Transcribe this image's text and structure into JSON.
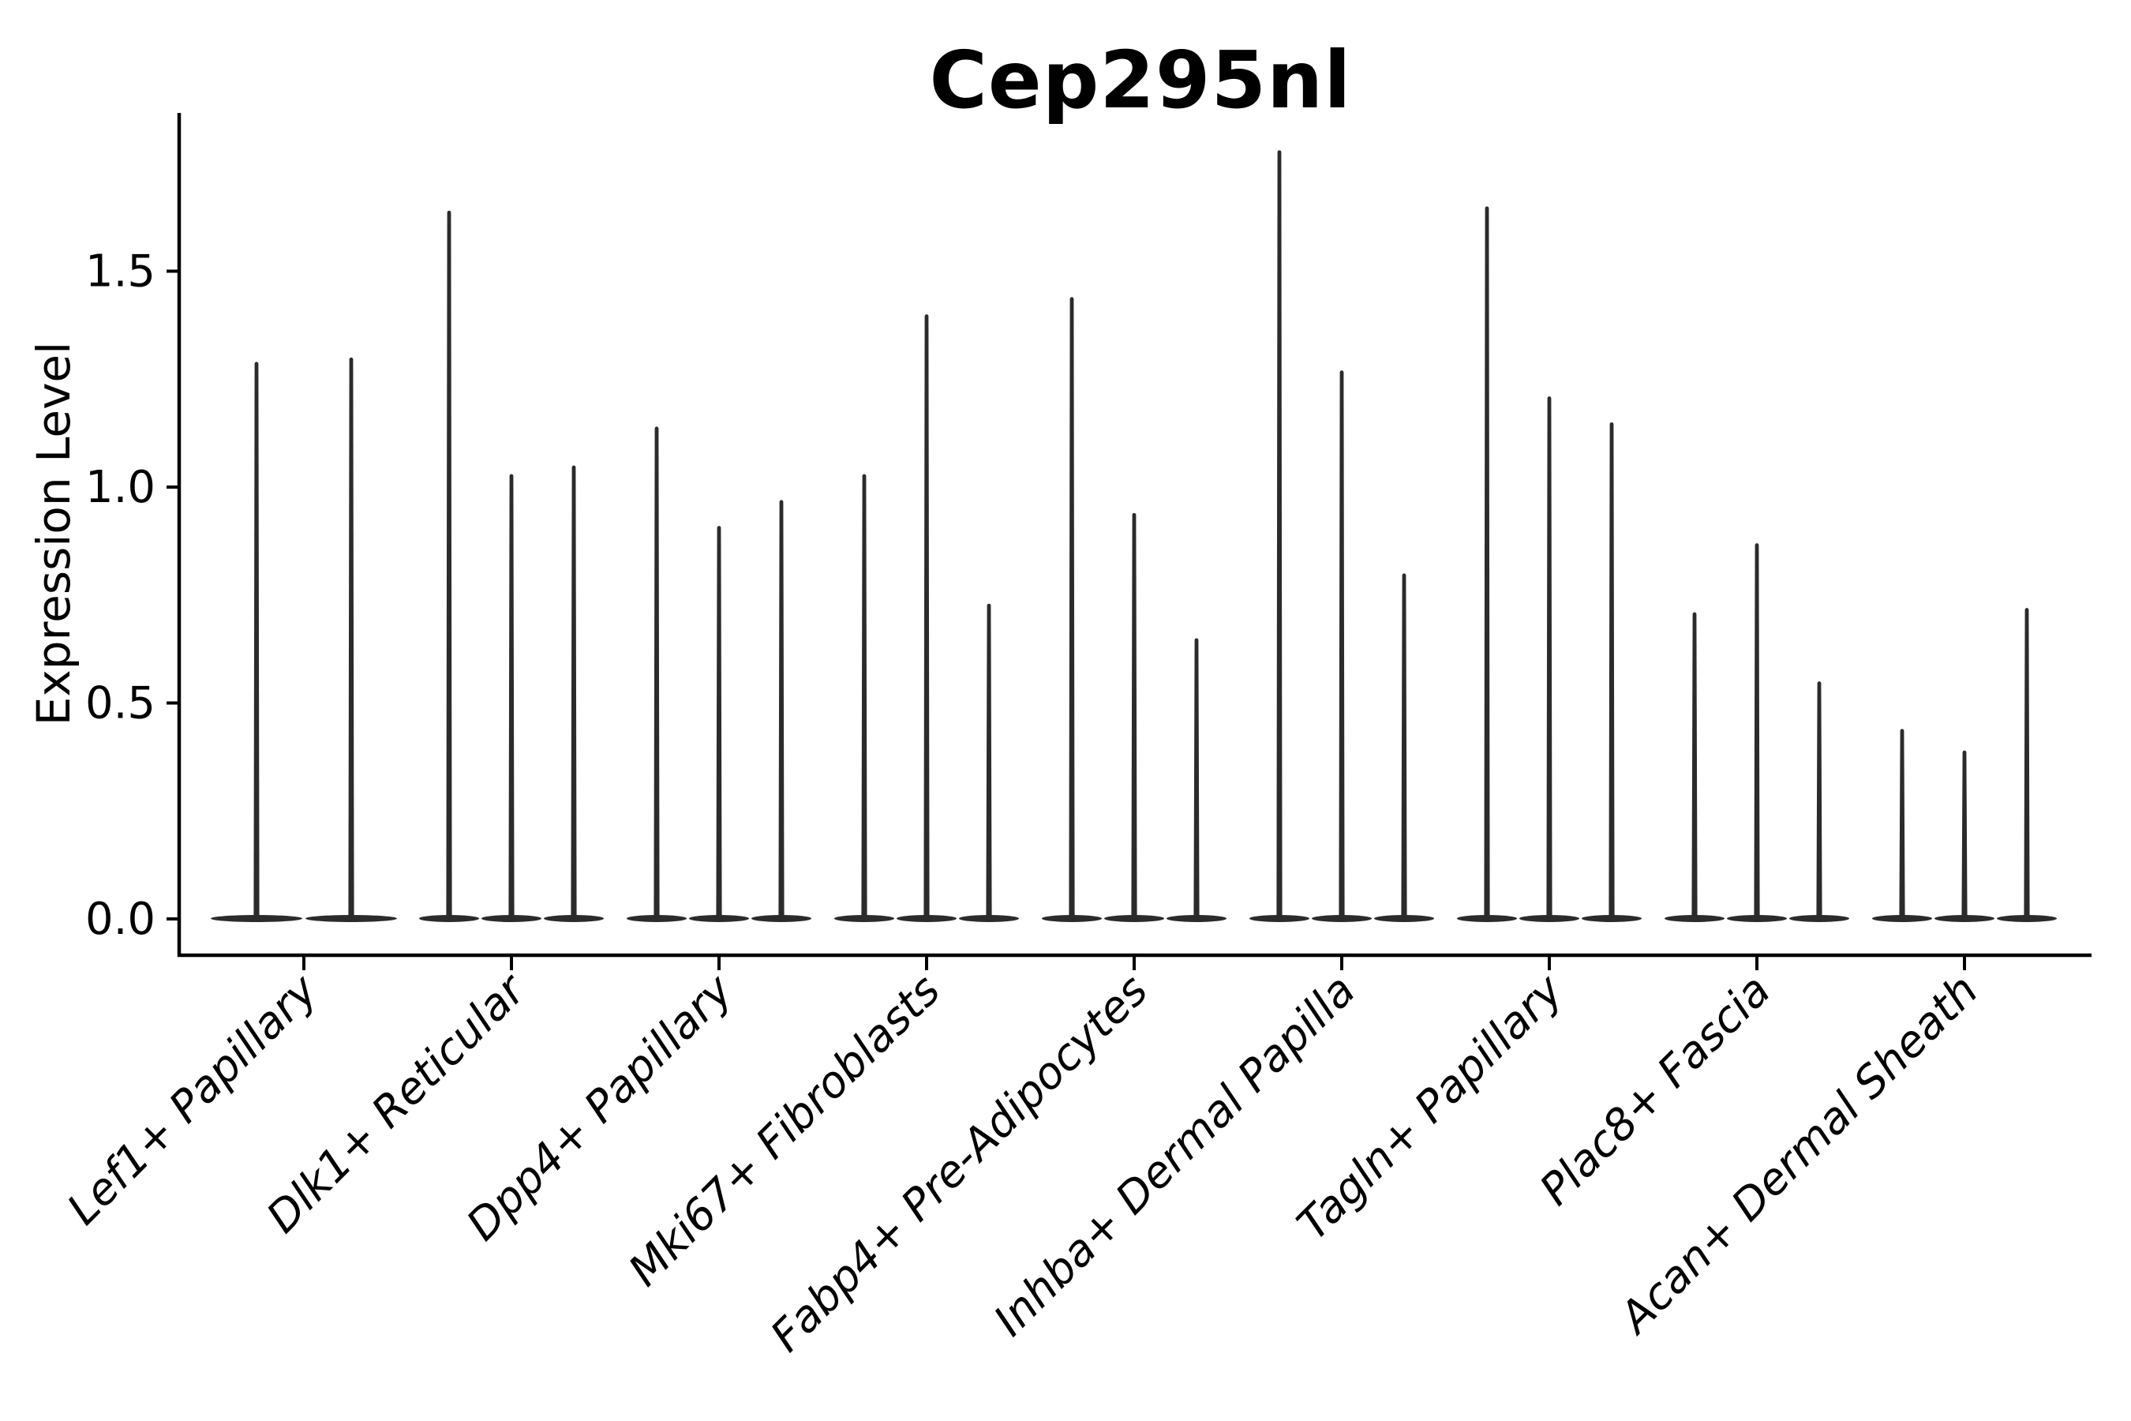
{
  "chart_data": {
    "type": "violin",
    "title": "Cep295nl",
    "ylabel": "Expression Level",
    "xlabel": "",
    "yticks": [
      "0.0",
      "0.5",
      "1.0",
      "1.5"
    ],
    "ylim": [
      -0.08,
      1.87
    ],
    "grid": false,
    "legend": null,
    "categories": [
      "Lef1+ Papillary",
      "Dlk1+ Reticular",
      "Dpp4+ Papillary",
      "Mki67+ Fibroblasts",
      "Fabp4+ Pre-Adipocytes",
      "Inhba+ Dermal Papilla",
      "Tagln+ Papillary",
      "Plac8+ Fascia",
      "Acan+ Dermal Sheath"
    ],
    "series": [
      {
        "category": "Lef1+ Papillary",
        "violin_max_values": [
          1.29,
          1.3
        ]
      },
      {
        "category": "Dlk1+ Reticular",
        "violin_max_values": [
          1.64,
          1.03,
          1.05
        ]
      },
      {
        "category": "Dpp4+ Papillary",
        "violin_max_values": [
          1.14,
          0.91,
          0.97
        ]
      },
      {
        "category": "Mki67+ Fibroblasts",
        "violin_max_values": [
          1.03,
          1.4,
          0.73
        ]
      },
      {
        "category": "Fabp4+ Pre-Adipocytes",
        "violin_max_values": [
          1.44,
          0.94,
          0.65
        ]
      },
      {
        "category": "Inhba+ Dermal Papilla",
        "violin_max_values": [
          1.78,
          1.27,
          0.8
        ]
      },
      {
        "category": "Tagln+ Papillary",
        "violin_max_values": [
          1.65,
          1.21,
          1.15
        ]
      },
      {
        "category": "Plac8+ Fascia",
        "violin_max_values": [
          0.71,
          0.87,
          0.55
        ]
      },
      {
        "category": "Acan+ Dermal Sheath",
        "violin_max_values": [
          0.44,
          0.39,
          0.72
        ]
      }
    ],
    "baseline_value": 0.0,
    "colors": {
      "violin": "#2b2b2b",
      "axis": "#000000",
      "text": "#000000",
      "background": "#ffffff"
    }
  }
}
